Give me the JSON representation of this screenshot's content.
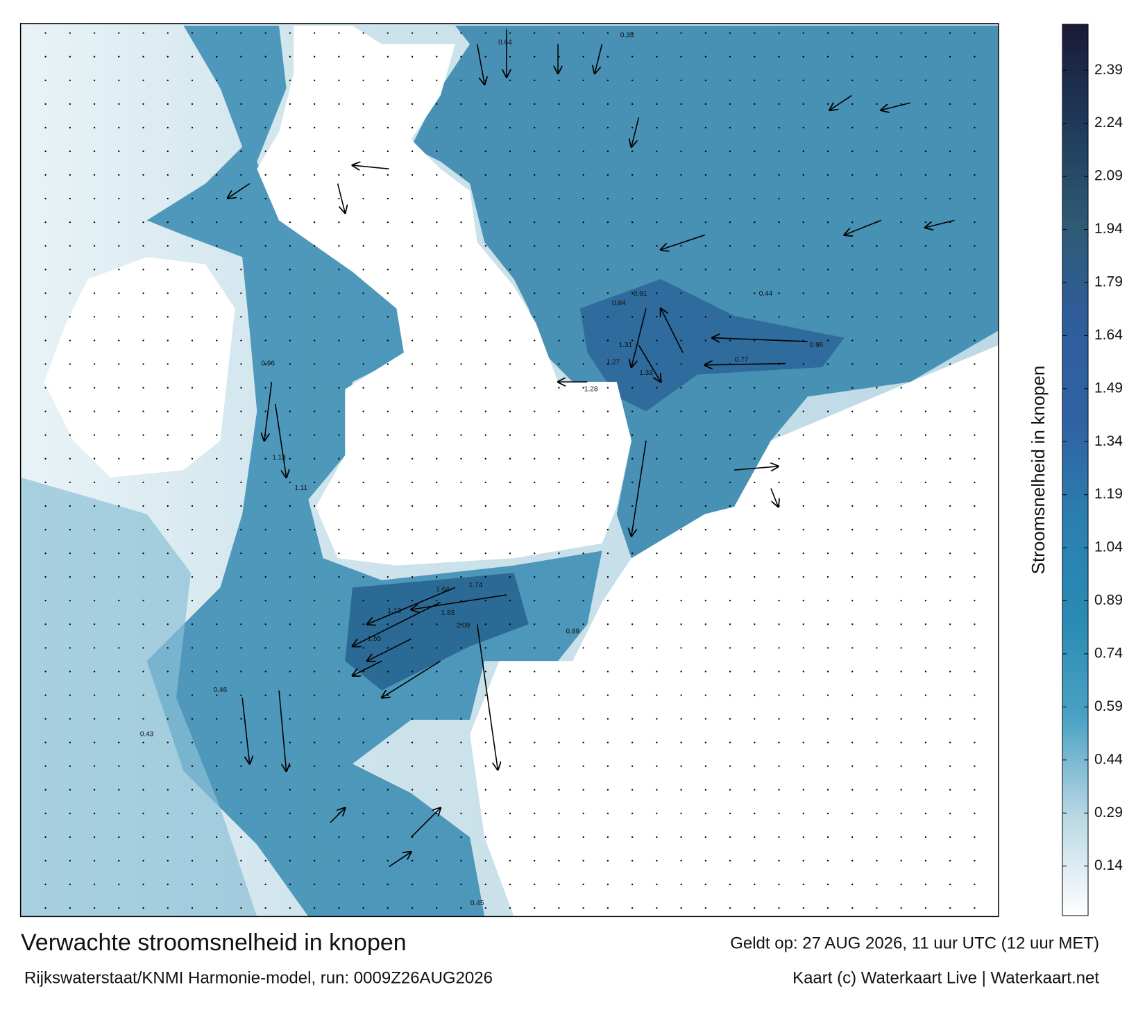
{
  "title": "Verwachte stroomsnelheid in knopen",
  "subtitle": "Rijkswaterstaat/KNMI Harmonie-model, run: 0009Z26AUG2026",
  "valid_time": "Geldt op: 27 AUG 2026, 11 uur UTC (12 uur MET)",
  "credit": "Kaart (c) Waterkaart Live | Waterkaart.net",
  "colorbar": {
    "label": "Stroomsnelheid in knopen",
    "lim": [
      0,
      2.52
    ],
    "ticks": [
      0.14,
      0.29,
      0.44,
      0.59,
      0.74,
      0.89,
      1.04,
      1.19,
      1.34,
      1.49,
      1.64,
      1.79,
      1.94,
      2.09,
      2.24,
      2.39
    ],
    "colors": [
      "#ffffff",
      "#b9d8e4",
      "#4aa2c4",
      "#2a8ab3",
      "#2b7fb0",
      "#2f62a2",
      "#2f5d9c",
      "#2e5a74",
      "#1e3a5a",
      "#1a1a38"
    ]
  },
  "map": {
    "speed_labels": [
      0.84,
      0.91,
      1.31,
      1.27,
      1.28,
      1.33,
      1.64,
      1.74,
      2.09,
      1.83,
      1.13,
      1.55,
      1.13,
      1.11,
      0.96,
      0.77,
      0.96,
      0.89,
      0.46,
      0.43,
      0.45,
      0.44,
      0.64,
      0.39
    ]
  }
}
